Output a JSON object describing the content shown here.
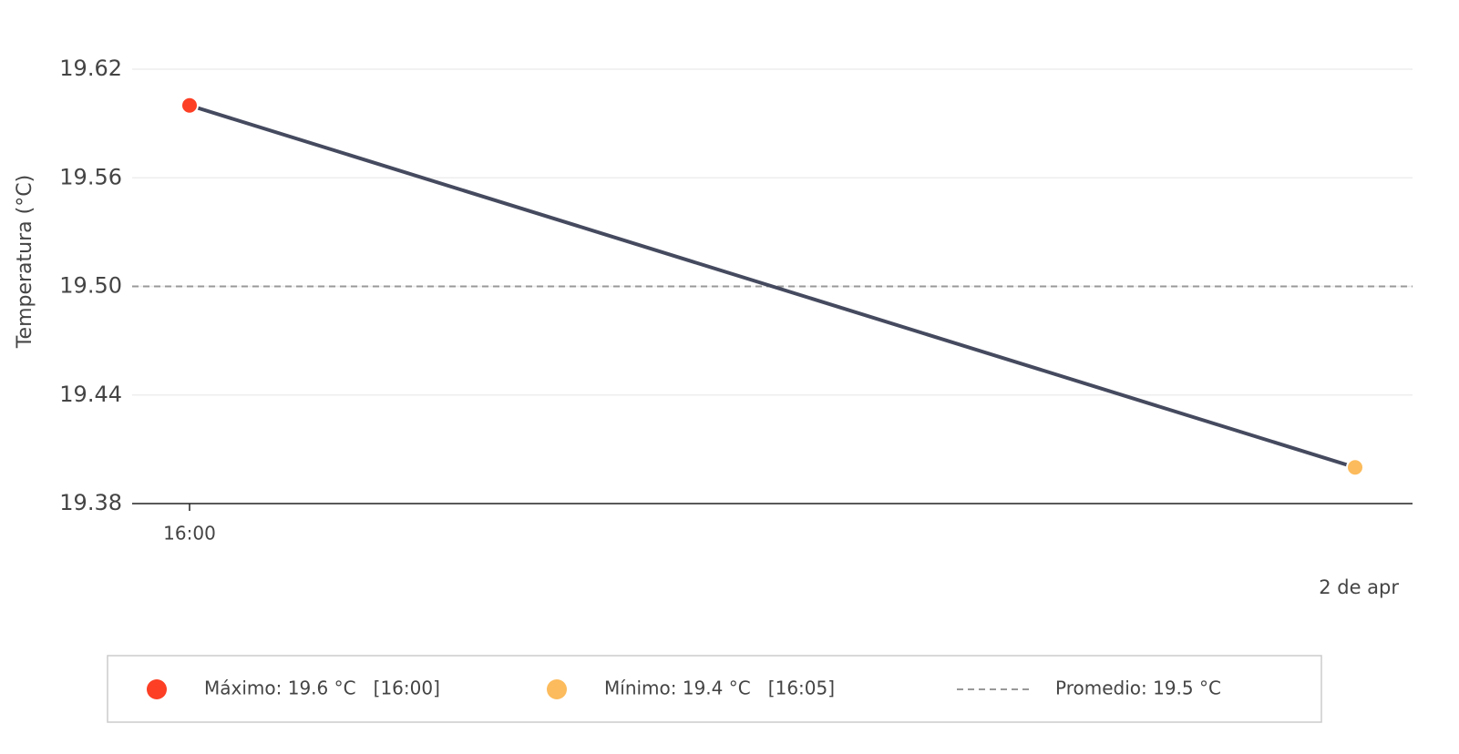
{
  "chart_data": {
    "type": "line",
    "y_label": "Temperatura (°C)",
    "x": [
      "16:00",
      "16:05"
    ],
    "xticks": [
      "16:00"
    ],
    "date_label": "2 de apr",
    "series": [
      {
        "color": "#454a5f",
        "values": [
          19.6,
          19.4
        ]
      }
    ],
    "ylim": [
      19.38,
      19.62
    ],
    "yticks": [
      {
        "value": 19.38,
        "label": "19.38"
      },
      {
        "value": 19.44,
        "label": "19.44"
      },
      {
        "value": 19.5,
        "label": "19.50"
      },
      {
        "value": 19.56,
        "label": "19.56"
      },
      {
        "value": 19.62,
        "label": "19.62"
      }
    ],
    "grid": true,
    "reference_line": {
      "value": 19.5,
      "color": "#999999"
    },
    "legend": [
      {
        "label": "Máximo: 19.6 °C   [16:00]",
        "color": "#fc3f25",
        "marker": "dot"
      },
      {
        "label": "Mínimo: 19.4 °C   [16:05]",
        "color": "#fcbb5c",
        "marker": "dot"
      },
      {
        "label": "Promedio: 19.5 °C",
        "color": "#999999",
        "marker": "dash"
      }
    ]
  }
}
